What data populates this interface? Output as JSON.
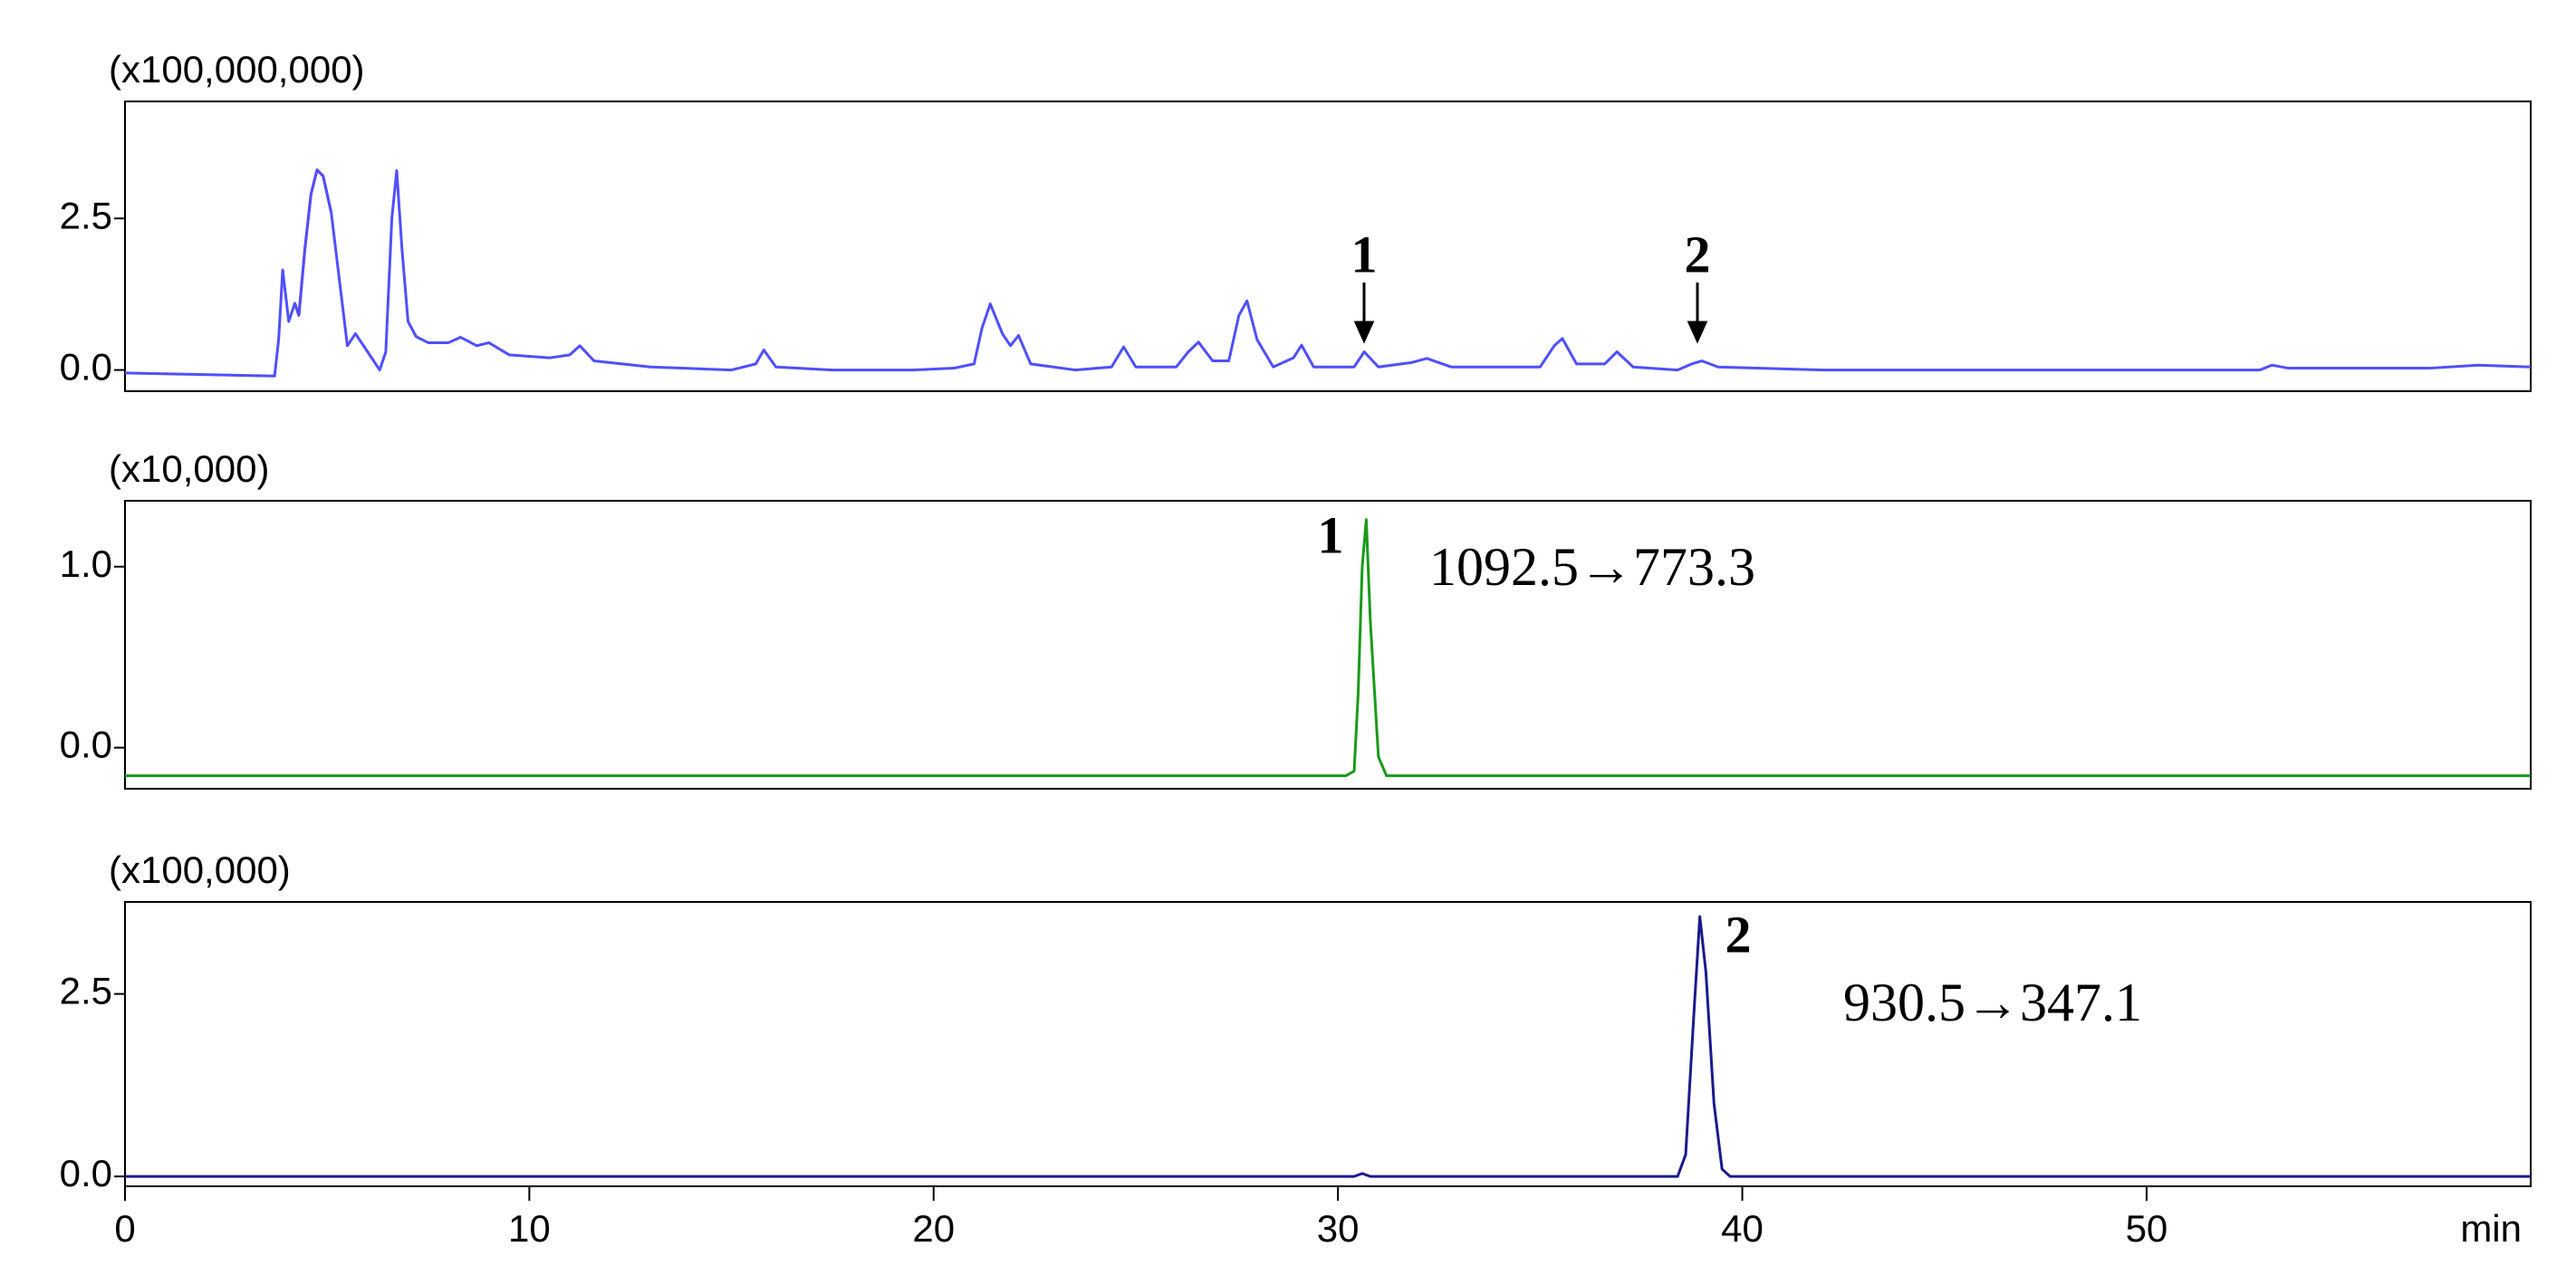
{
  "chart_data": [
    {
      "type": "line",
      "ylabel": "(x100,000,000)",
      "xlim": [
        0,
        59.5
      ],
      "ylim": [
        -0.35,
        4.43
      ],
      "yticks": [
        {
          "value": 0,
          "label": "0.0"
        },
        2.5
      ],
      "annotations": [
        "1",
        "2"
      ],
      "series": [
        {
          "color": "#4f4fff",
          "x": [
            0,
            3.7,
            3.8,
            3.9,
            4.05,
            4.2,
            4.3,
            4.45,
            4.6,
            4.75,
            4.9,
            5.1,
            5.3,
            5.5,
            5.7,
            6.0,
            6.3,
            6.45,
            6.6,
            6.72,
            6.85,
            7.0,
            7.2,
            7.5,
            8.0,
            8.3,
            8.7,
            9.0,
            9.5,
            10.5,
            11.0,
            11.25,
            11.6,
            13.0,
            15.0,
            15.6,
            15.8,
            16.1,
            17.5,
            19.5,
            20.5,
            21.0,
            21.2,
            21.4,
            21.7,
            21.9,
            22.1,
            22.4,
            23.5,
            24.4,
            24.7,
            25.0,
            26.0,
            26.3,
            26.55,
            26.9,
            27.3,
            27.55,
            27.75,
            28.0,
            28.4,
            28.9,
            29.1,
            29.4,
            30.4,
            30.65,
            31.0,
            31.8,
            32.2,
            32.8,
            35.0,
            35.35,
            35.55,
            35.9,
            36.6,
            36.9,
            37.3,
            38.4,
            38.75,
            39.0,
            39.4,
            42.0,
            45.0,
            50.0,
            52.8,
            53.1,
            53.5,
            57.0,
            58.2,
            59.5
          ],
          "values": [
            -0.05,
            -0.1,
            0.5,
            1.65,
            0.8,
            1.1,
            0.9,
            2.0,
            2.9,
            3.3,
            3.2,
            2.6,
            1.5,
            0.4,
            0.6,
            0.3,
            0.0,
            0.3,
            2.5,
            3.29,
            2.0,
            0.8,
            0.55,
            0.45,
            0.45,
            0.54,
            0.4,
            0.45,
            0.25,
            0.2,
            0.25,
            0.4,
            0.15,
            0.05,
            0.0,
            0.1,
            0.33,
            0.05,
            0.0,
            0.0,
            0.03,
            0.1,
            0.7,
            1.09,
            0.6,
            0.4,
            0.57,
            0.1,
            0.0,
            0.05,
            0.38,
            0.05,
            0.05,
            0.3,
            0.46,
            0.15,
            0.15,
            0.9,
            1.14,
            0.5,
            0.05,
            0.2,
            0.41,
            0.05,
            0.05,
            0.3,
            0.05,
            0.12,
            0.19,
            0.05,
            0.05,
            0.4,
            0.52,
            0.1,
            0.1,
            0.3,
            0.05,
            0.0,
            0.1,
            0.15,
            0.05,
            0.0,
            0.0,
            0.0,
            0.0,
            0.08,
            0.03,
            0.03,
            0.08,
            0.05
          ]
        },
        {
          "color": "#e8174a",
          "x": [
            4.2,
            4.3,
            4.45,
            4.6,
            4.75,
            4.9,
            5.1
          ],
          "values": [
            1.1,
            0.9,
            2.0,
            2.9,
            3.3,
            3.2,
            2.6
          ]
        }
      ]
    },
    {
      "type": "line",
      "ylabel": "(x10,000)",
      "xlim": [
        0,
        59.5
      ],
      "ylim": [
        -0.227,
        1.364
      ],
      "yticks": [
        {
          "value": 0,
          "label": "0.0"
        },
        {
          "value": 1,
          "label": "1.0"
        }
      ],
      "annotations": [
        "1",
        "1092.5→773.3"
      ],
      "series": [
        {
          "color": "#1a9a1a",
          "x": [
            0,
            30.2,
            30.4,
            30.5,
            30.6,
            30.7,
            30.8,
            31.0,
            31.2,
            59.5
          ],
          "values": [
            -0.155,
            -0.155,
            -0.13,
            0.3,
            1.0,
            1.26,
            0.7,
            -0.05,
            -0.155,
            -0.155
          ]
        }
      ]
    },
    {
      "type": "line",
      "ylabel": "(x100,000)",
      "xlim": [
        0,
        59.5
      ],
      "ylim": [
        -0.135,
        3.76
      ],
      "yticks": [
        {
          "value": 0,
          "label": "0.0"
        },
        2.5
      ],
      "xticks": [
        0,
        10,
        20,
        30,
        40,
        50
      ],
      "xlabel": "min",
      "annotations": [
        "2",
        "930.5→347.1"
      ],
      "series": [
        {
          "color": "#1a1a8c",
          "x": [
            0,
            30.4,
            30.6,
            30.8,
            38.4,
            38.6,
            38.8,
            38.95,
            39.1,
            39.3,
            39.5,
            39.7,
            59.5
          ],
          "values": [
            0.0,
            0.0,
            0.04,
            0.0,
            0.0,
            0.3,
            2.2,
            3.56,
            2.8,
            1.0,
            0.1,
            0.0,
            0.0
          ]
        }
      ]
    }
  ]
}
